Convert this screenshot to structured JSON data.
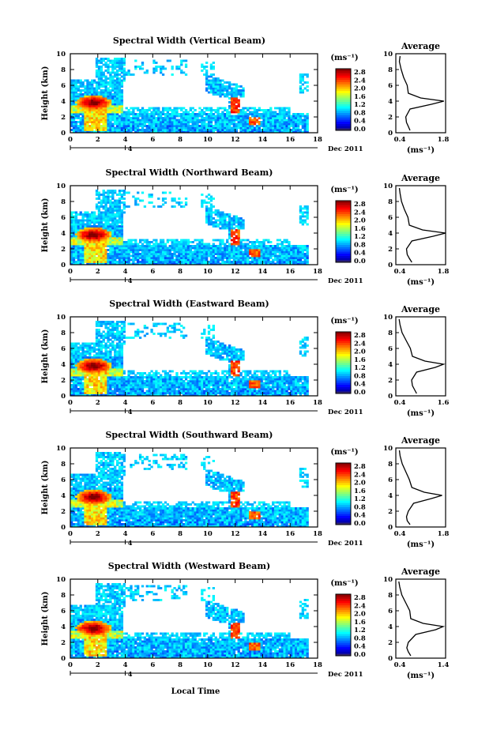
{
  "date_label": "Dec 2011",
  "xlabel": "Local Time",
  "day_label": "4",
  "colorbar": {
    "unit": "(ms⁻¹)",
    "ticks": [
      "0.0",
      "0.4",
      "0.8",
      "1.2",
      "1.6",
      "2.0",
      "2.4",
      "2.8"
    ]
  },
  "chart_data": [
    {
      "type": "heatmap",
      "title": "Spectral Width (Vertical Beam)",
      "ylabel": "Height (km)",
      "xlim": [
        0,
        18
      ],
      "ylim": [
        0,
        10
      ],
      "xticks": [
        "0",
        "2",
        "4",
        "6",
        "8",
        "10",
        "12",
        "14",
        "16",
        "18"
      ],
      "yticks": [
        "0",
        "2",
        "4",
        "6",
        "8",
        "10"
      ],
      "colorbar_range": [
        0.0,
        2.8
      ],
      "profile": {
        "title": "Average",
        "xlabel": "(ms⁻¹)",
        "xlim": [
          0.4,
          1.8
        ],
        "xticks": [
          "0.4",
          "1.8"
        ],
        "heights": [
          0.3,
          0.8,
          1.3,
          2.0,
          3.0,
          3.6,
          4.0,
          4.4,
          5.0,
          6.0,
          7.0,
          8.0,
          9.0,
          9.7
        ],
        "values": [
          0.8,
          0.75,
          0.7,
          0.68,
          0.8,
          1.4,
          1.75,
          1.1,
          0.75,
          0.72,
          0.62,
          0.55,
          0.5,
          0.52
        ]
      }
    },
    {
      "type": "heatmap",
      "title": "Spectral Width (Northward Beam)",
      "ylabel": "Height (km)",
      "xlim": [
        0,
        18
      ],
      "ylim": [
        0,
        10
      ],
      "xticks": [
        "0",
        "2",
        "4",
        "6",
        "8",
        "10",
        "12",
        "14",
        "16",
        "18"
      ],
      "yticks": [
        "0",
        "2",
        "4",
        "6",
        "8",
        "10"
      ],
      "colorbar_range": [
        0.0,
        2.8
      ],
      "profile": {
        "title": "Average",
        "xlabel": "(ms⁻¹)",
        "xlim": [
          0.4,
          1.8
        ],
        "xticks": [
          "0.4",
          "1.8"
        ],
        "heights": [
          0.3,
          0.8,
          1.3,
          2.0,
          3.0,
          3.6,
          4.0,
          4.4,
          5.0,
          6.0,
          7.0,
          8.0,
          9.0,
          9.7
        ],
        "values": [
          0.85,
          0.78,
          0.72,
          0.7,
          0.85,
          1.45,
          1.8,
          1.15,
          0.78,
          0.74,
          0.64,
          0.56,
          0.52,
          0.5
        ]
      }
    },
    {
      "type": "heatmap",
      "title": "Spectral Width (Eastward Beam)",
      "ylabel": "Height (km)",
      "xlim": [
        0,
        18
      ],
      "ylim": [
        0,
        10
      ],
      "xticks": [
        "0",
        "2",
        "4",
        "6",
        "8",
        "10",
        "12",
        "14",
        "16",
        "18"
      ],
      "yticks": [
        "0",
        "2",
        "4",
        "6",
        "8",
        "10"
      ],
      "colorbar_range": [
        0.0,
        2.8
      ],
      "profile": {
        "title": "Average",
        "xlabel": "(ms⁻¹)",
        "xlim": [
          0.4,
          1.6
        ],
        "xticks": [
          "0.4",
          "1.6"
        ],
        "heights": [
          0.3,
          0.8,
          1.3,
          2.0,
          3.0,
          3.6,
          4.0,
          4.4,
          5.0,
          6.0,
          7.0,
          8.0,
          9.0,
          9.7
        ],
        "values": [
          0.9,
          0.85,
          0.8,
          0.78,
          0.9,
          1.35,
          1.55,
          1.1,
          0.8,
          0.75,
          0.65,
          0.55,
          0.5,
          0.48
        ]
      }
    },
    {
      "type": "heatmap",
      "title": "Spectral Width (Southward Beam)",
      "ylabel": "Height (km)",
      "xlim": [
        0,
        18
      ],
      "ylim": [
        0,
        10
      ],
      "xticks": [
        "0",
        "2",
        "4",
        "6",
        "8",
        "10",
        "12",
        "14",
        "16",
        "18"
      ],
      "yticks": [
        "0",
        "2",
        "4",
        "6",
        "8",
        "10"
      ],
      "colorbar_range": [
        0.0,
        2.8
      ],
      "profile": {
        "title": "Average",
        "xlabel": "(ms⁻¹)",
        "xlim": [
          0.4,
          1.8
        ],
        "xticks": [
          "0.4",
          "1.8"
        ],
        "heights": [
          0.3,
          0.8,
          1.3,
          2.0,
          3.0,
          3.6,
          4.0,
          4.4,
          5.0,
          6.0,
          7.0,
          8.0,
          9.0,
          9.7
        ],
        "values": [
          0.8,
          0.72,
          0.7,
          0.75,
          0.9,
          1.4,
          1.7,
          1.2,
          0.85,
          0.78,
          0.68,
          0.58,
          0.52,
          0.5
        ]
      }
    },
    {
      "type": "heatmap",
      "title": "Spectral Width (Westward Beam)",
      "ylabel": "Height (km)",
      "xlim": [
        0,
        18
      ],
      "ylim": [
        0,
        10
      ],
      "xticks": [
        "0",
        "2",
        "4",
        "6",
        "8",
        "10",
        "12",
        "14",
        "16",
        "18"
      ],
      "yticks": [
        "0",
        "2",
        "4",
        "6",
        "8",
        "10"
      ],
      "colorbar_range": [
        0.0,
        2.8
      ],
      "profile": {
        "title": "Average",
        "xlabel": "(ms⁻¹)",
        "xlim": [
          0.4,
          1.4
        ],
        "xticks": [
          "0.4",
          "1.4"
        ],
        "heights": [
          0.3,
          0.8,
          1.3,
          2.0,
          3.0,
          3.6,
          4.0,
          4.4,
          5.0,
          6.0,
          7.0,
          8.0,
          9.0,
          9.7
        ],
        "values": [
          0.7,
          0.65,
          0.62,
          0.65,
          0.8,
          1.2,
          1.35,
          0.95,
          0.7,
          0.68,
          0.6,
          0.52,
          0.48,
          0.46
        ]
      }
    }
  ]
}
